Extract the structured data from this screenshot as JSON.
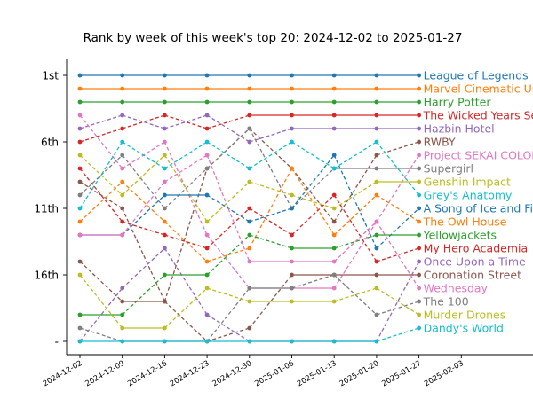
{
  "chart_data": {
    "type": "line",
    "title": "Rank by week of this week's top 20: 2024-12-02 to 2025-01-27",
    "xlabel": "",
    "ylabel": "",
    "x": [
      "2024-12-02",
      "2024-12-09",
      "2024-12-16",
      "2024-12-23",
      "2024-12-30",
      "2025-01-06",
      "2025-01-13",
      "2025-01-20",
      "2025-01-27"
    ],
    "x_tick_labels": [
      "2024-12-02",
      "2024-12-09",
      "2024-12-16",
      "2024-12-23",
      "2024-12-30",
      "2025-01-06",
      "2025-01-13",
      "2025-01-20",
      "2025-01-27",
      "2025-02-03"
    ],
    "y_ticks": [
      {
        "value": 1,
        "label": "1st"
      },
      {
        "value": 6,
        "label": "6th"
      },
      {
        "value": 11,
        "label": "11th"
      },
      {
        "value": 16,
        "label": "16th"
      },
      {
        "value": 21,
        "label": "-"
      }
    ],
    "ylim": [
      22,
      0
    ],
    "unranked_value": 21,
    "grid": false,
    "legend": "series names printed at the right end of each line",
    "series": [
      {
        "name": "League of Legends",
        "color": "#1f77b4",
        "values": [
          1,
          1,
          1,
          1,
          1,
          1,
          1,
          1,
          1
        ]
      },
      {
        "name": "Marvel Cinematic Universe",
        "color": "#ff7f0e",
        "values": [
          2,
          2,
          2,
          2,
          2,
          2,
          2,
          2,
          2
        ]
      },
      {
        "name": "Harry Potter",
        "color": "#2ca02c",
        "values": [
          3,
          3,
          3,
          3,
          3,
          3,
          3,
          3,
          3
        ]
      },
      {
        "name": "The Wicked Years Series",
        "color": "#d62728",
        "values": [
          6,
          5,
          4,
          5,
          4,
          4,
          4,
          4,
          4
        ]
      },
      {
        "name": "Hazbin Hotel",
        "color": "#9467bd",
        "values": [
          5,
          4,
          5,
          4,
          6,
          5,
          5,
          5,
          5
        ]
      },
      {
        "name": "RWBY",
        "color": "#8c564b",
        "values": [
          9,
          11,
          18,
          8,
          5,
          8,
          12,
          7,
          6
        ]
      },
      {
        "name": "Project SEKAI COLORFUL STAGE! feat. HATSUNE MIKU",
        "color": "#e377c2",
        "values": [
          4,
          8,
          6,
          13,
          17,
          17,
          17,
          12,
          7
        ]
      },
      {
        "name": "Supergirl",
        "color": "#7f7f7f",
        "values": [
          10,
          7,
          11,
          8,
          5,
          11,
          8,
          8,
          8
        ]
      },
      {
        "name": "Genshin Impact",
        "color": "#bcbd22",
        "values": [
          7,
          10,
          7,
          12,
          9,
          10,
          11,
          9,
          9
        ]
      },
      {
        "name": "Grey's Anatomy",
        "color": "#17becf",
        "values": [
          11,
          6,
          8,
          6,
          8,
          6,
          8,
          6,
          10
        ]
      },
      {
        "name": "A Song of Ice and Fire",
        "color": "#1f77b4",
        "values": [
          13,
          13,
          10,
          10,
          12,
          11,
          7,
          14,
          11
        ]
      },
      {
        "name": "The Owl House",
        "color": "#ff7f0e",
        "values": [
          12,
          9,
          12,
          15,
          14,
          8,
          13,
          10,
          12
        ]
      },
      {
        "name": "Yellowjackets",
        "color": "#2ca02c",
        "values": [
          19,
          19,
          16,
          16,
          13,
          14,
          14,
          13,
          13
        ]
      },
      {
        "name": "My Hero Academia",
        "color": "#d62728",
        "values": [
          8,
          12,
          13,
          14,
          11,
          13,
          10,
          15,
          14
        ]
      },
      {
        "name": "Once Upon a Time",
        "color": "#9467bd",
        "values": [
          21,
          17,
          14,
          19,
          21,
          21,
          21,
          21,
          15
        ]
      },
      {
        "name": "Coronation Street",
        "color": "#8c564b",
        "values": [
          15,
          18,
          18,
          21,
          20,
          16,
          16,
          16,
          16
        ]
      },
      {
        "name": "Wednesday",
        "color": "#e377c2",
        "values": [
          13,
          13,
          9,
          7,
          15,
          15,
          15,
          12,
          17
        ]
      },
      {
        "name": "The 100",
        "color": "#7f7f7f",
        "values": [
          20,
          21,
          21,
          21,
          17,
          17,
          16,
          19,
          18
        ]
      },
      {
        "name": "Murder Drones",
        "color": "#bcbd22",
        "values": [
          16,
          20,
          20,
          17,
          18,
          18,
          18,
          17,
          19
        ]
      },
      {
        "name": "Dandy's World",
        "color": "#17becf",
        "values": [
          21,
          21,
          21,
          21,
          21,
          21,
          21,
          21,
          20
        ]
      }
    ]
  }
}
